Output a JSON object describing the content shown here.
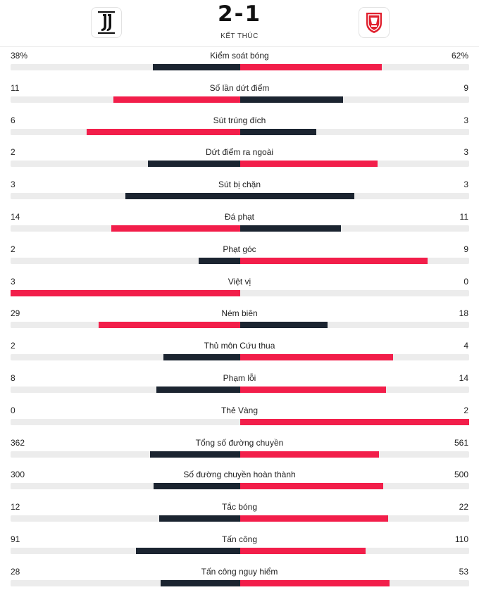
{
  "match": {
    "home_score": "2",
    "separator": "-",
    "away_score": "1",
    "status": "KẾT THÚC",
    "home_logo_icon": "juventus-logo-icon",
    "away_logo_icon": "monza-logo-icon"
  },
  "colors": {
    "dark": "#1b2430",
    "red": "#f21e4a",
    "track": "#ececec"
  },
  "stats": [
    {
      "label": "Kiểm soát bóng",
      "home": "38%",
      "away": "62%",
      "home_share": 0.38,
      "away_share": 0.62,
      "home_color": "dark",
      "away_color": "red"
    },
    {
      "label": "Số lần dứt điểm",
      "home": "11",
      "away": "9",
      "home_share": 0.55,
      "away_share": 0.45,
      "home_color": "red",
      "away_color": "dark"
    },
    {
      "label": "Sút trúng đích",
      "home": "6",
      "away": "3",
      "home_share": 0.667,
      "away_share": 0.333,
      "home_color": "red",
      "away_color": "dark"
    },
    {
      "label": "Dứt điểm ra ngoài",
      "home": "2",
      "away": "3",
      "home_share": 0.4,
      "away_share": 0.6,
      "home_color": "dark",
      "away_color": "red"
    },
    {
      "label": "Sút bị chặn",
      "home": "3",
      "away": "3",
      "home_share": 0.5,
      "away_share": 0.5,
      "home_color": "dark",
      "away_color": "dark"
    },
    {
      "label": "Đá phạt",
      "home": "14",
      "away": "11",
      "home_share": 0.56,
      "away_share": 0.44,
      "home_color": "red",
      "away_color": "dark"
    },
    {
      "label": "Phạt góc",
      "home": "2",
      "away": "9",
      "home_share": 0.18,
      "away_share": 0.82,
      "home_color": "dark",
      "away_color": "red"
    },
    {
      "label": "Việt vị",
      "home": "3",
      "away": "0",
      "home_share": 1.0,
      "away_share": 0.0,
      "home_color": "red",
      "away_color": "dark"
    },
    {
      "label": "Ném biên",
      "home": "29",
      "away": "18",
      "home_share": 0.617,
      "away_share": 0.383,
      "home_color": "red",
      "away_color": "dark"
    },
    {
      "label": "Thủ môn Cứu thua",
      "home": "2",
      "away": "4",
      "home_share": 0.333,
      "away_share": 0.667,
      "home_color": "dark",
      "away_color": "red"
    },
    {
      "label": "Phạm lỗi",
      "home": "8",
      "away": "14",
      "home_share": 0.364,
      "away_share": 0.636,
      "home_color": "dark",
      "away_color": "red"
    },
    {
      "label": "Thẻ Vàng",
      "home": "0",
      "away": "2",
      "home_share": 0.0,
      "away_share": 1.0,
      "home_color": "dark",
      "away_color": "red"
    },
    {
      "label": "Tổng số đường chuyền",
      "home": "362",
      "away": "561",
      "home_share": 0.392,
      "away_share": 0.608,
      "home_color": "dark",
      "away_color": "red"
    },
    {
      "label": "Số đường chuyền hoàn thành",
      "home": "300",
      "away": "500",
      "home_share": 0.375,
      "away_share": 0.625,
      "home_color": "dark",
      "away_color": "red"
    },
    {
      "label": "Tắc bóng",
      "home": "12",
      "away": "22",
      "home_share": 0.353,
      "away_share": 0.647,
      "home_color": "dark",
      "away_color": "red"
    },
    {
      "label": "Tấn công",
      "home": "91",
      "away": "110",
      "home_share": 0.453,
      "away_share": 0.547,
      "home_color": "dark",
      "away_color": "red"
    },
    {
      "label": "Tấn công nguy hiểm",
      "home": "28",
      "away": "53",
      "home_share": 0.346,
      "away_share": 0.654,
      "home_color": "dark",
      "away_color": "red"
    }
  ]
}
